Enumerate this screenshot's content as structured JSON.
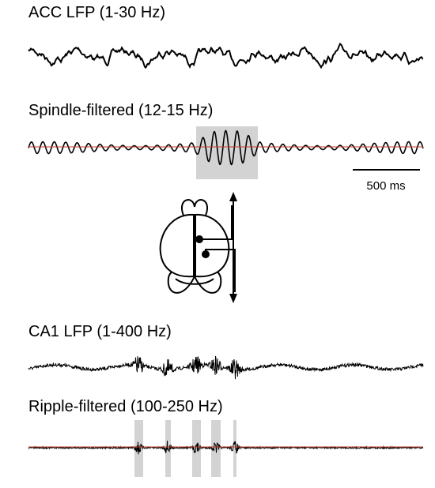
{
  "traces": [
    {
      "label": "ACC LFP (1-30 Hz)"
    },
    {
      "label": "Spindle-filtered (12-15 Hz)"
    },
    {
      "label": "CA1 LFP (1-400 Hz)"
    },
    {
      "label": "Ripple-filtered (100-250 Hz)"
    }
  ],
  "scale_bar": {
    "label": "500 ms"
  }
}
